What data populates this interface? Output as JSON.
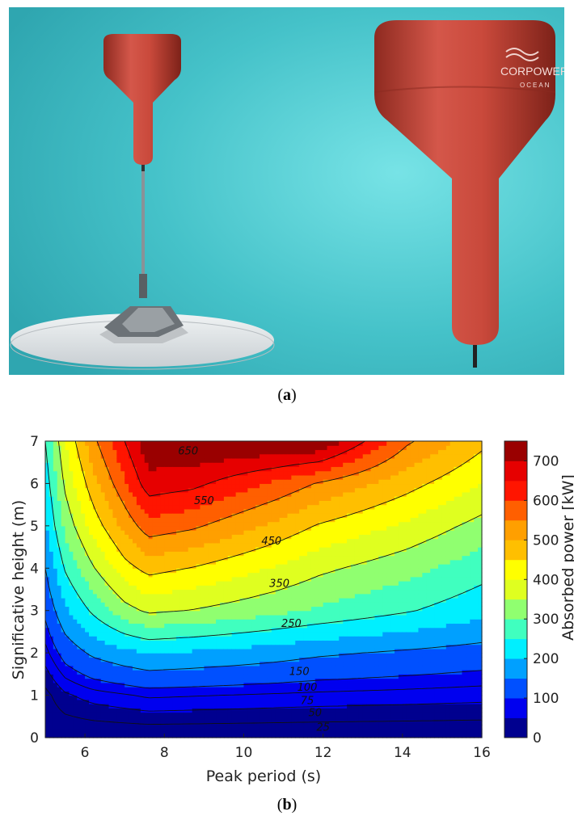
{
  "panel_a": {
    "caption_open": "(",
    "caption_letter": "a",
    "caption_close": ")",
    "logo_lines": [
      "CORPOWER",
      "OCEAN"
    ],
    "colors": {
      "sea": "#3fbfc7",
      "buoy": "#c9493b",
      "base": "#e3e7ea"
    }
  },
  "panel_b": {
    "caption_open": "(",
    "caption_letter": "b",
    "caption_close": ")"
  },
  "chart_data": {
    "type": "heatmap",
    "subtype": "filled-contour",
    "title": "",
    "xlabel": "Peak period (s)",
    "ylabel": "Significative height (m)",
    "colorbar_label": "Absorbed power [kW]",
    "xlim": [
      5,
      16
    ],
    "ylim": [
      0,
      7
    ],
    "xticks": [
      6,
      8,
      10,
      12,
      14,
      16
    ],
    "yticks": [
      0,
      1,
      2,
      3,
      4,
      5,
      6,
      7
    ],
    "colorbar_ticks": [
      0,
      100,
      200,
      300,
      400,
      500,
      600,
      700
    ],
    "colorbar_range": [
      0,
      750
    ],
    "levels": [
      0,
      50,
      100,
      150,
      200,
      250,
      300,
      350,
      400,
      450,
      500,
      550,
      600,
      650,
      700,
      750
    ],
    "level_colors": [
      "#00008f",
      "#0000ef",
      "#0050ff",
      "#00a0ff",
      "#00efff",
      "#40ffbf",
      "#90ff70",
      "#dfff20",
      "#ffff00",
      "#ffbf00",
      "#ff9f00",
      "#ff5f00",
      "#ff1500",
      "#e60000",
      "#9a0000"
    ],
    "contour_labels": [
      "650",
      "550",
      "450",
      "350",
      "250",
      "150",
      "100",
      "75",
      "50",
      "25"
    ],
    "grid_x": [
      5,
      5.5,
      6.2,
      7,
      7.6,
      8.7,
      9.8,
      10.8,
      11.9,
      14.1,
      16
    ],
    "grid_y": [
      0,
      1,
      2,
      3,
      4,
      5,
      6,
      7
    ],
    "power_kw": [
      [
        0,
        0,
        0,
        0,
        0,
        0,
        0,
        0,
        0,
        0,
        0
      ],
      [
        16,
        45,
        62,
        72,
        80,
        77,
        74,
        71,
        68,
        64,
        60
      ],
      [
        65,
        118,
        160,
        185,
        200,
        192,
        182,
        172,
        158,
        142,
        128
      ],
      [
        110,
        190,
        260,
        330,
        360,
        348,
        330,
        312,
        292,
        255,
        218
      ],
      [
        150,
        255,
        345,
        430,
        468,
        448,
        420,
        395,
        362,
        318,
        270
      ],
      [
        190,
        315,
        420,
        515,
        580,
        560,
        522,
        487,
        445,
        390,
        332
      ],
      [
        220,
        360,
        480,
        590,
        680,
        665,
        625,
        590,
        545,
        470,
        400
      ],
      [
        250,
        400,
        535,
        650,
        740,
        752,
        752,
        752,
        750,
        560,
        465
      ]
    ]
  }
}
